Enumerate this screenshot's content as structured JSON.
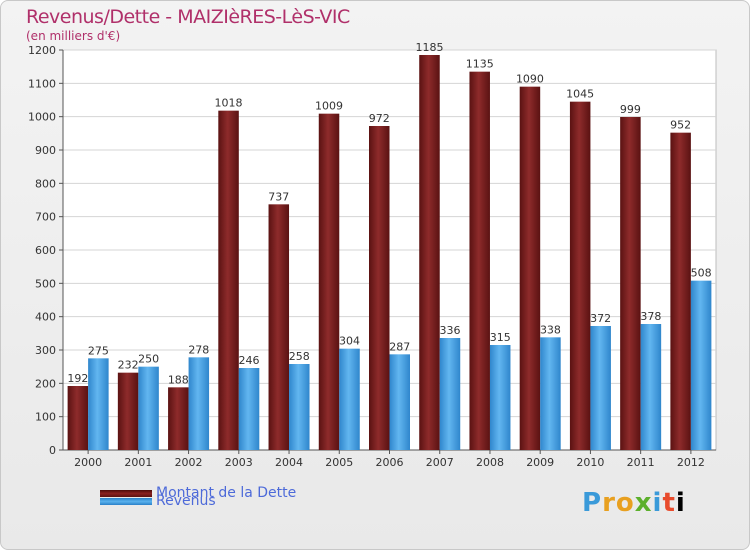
{
  "chart_data": {
    "type": "bar",
    "title": "Revenus/Dette - MAIZIèRES-LèS-VIC",
    "subtitle": "(en milliers d'€)",
    "categories": [
      "2000",
      "2001",
      "2002",
      "2003",
      "2004",
      "2005",
      "2006",
      "2007",
      "2008",
      "2009",
      "2010",
      "2011",
      "2012"
    ],
    "series": [
      {
        "name": "Montant de la Dette",
        "color": "#7a1c1c",
        "values": [
          192,
          232,
          188,
          1018,
          737,
          1009,
          972,
          1185,
          1135,
          1090,
          1045,
          999,
          952
        ]
      },
      {
        "name": "Revenus",
        "color": "#3d9be0",
        "values": [
          275,
          250,
          278,
          246,
          258,
          304,
          287,
          336,
          315,
          338,
          372,
          378,
          508
        ]
      }
    ],
    "ylim": [
      0,
      1200
    ],
    "yticks": [
      0,
      100,
      200,
      300,
      400,
      500,
      600,
      700,
      800,
      900,
      1000,
      1100,
      1200
    ],
    "grid": true,
    "legend": "bottom-left"
  },
  "logo": {
    "letters": [
      "P",
      "r",
      "o",
      "x",
      "i",
      "t",
      "i"
    ]
  }
}
